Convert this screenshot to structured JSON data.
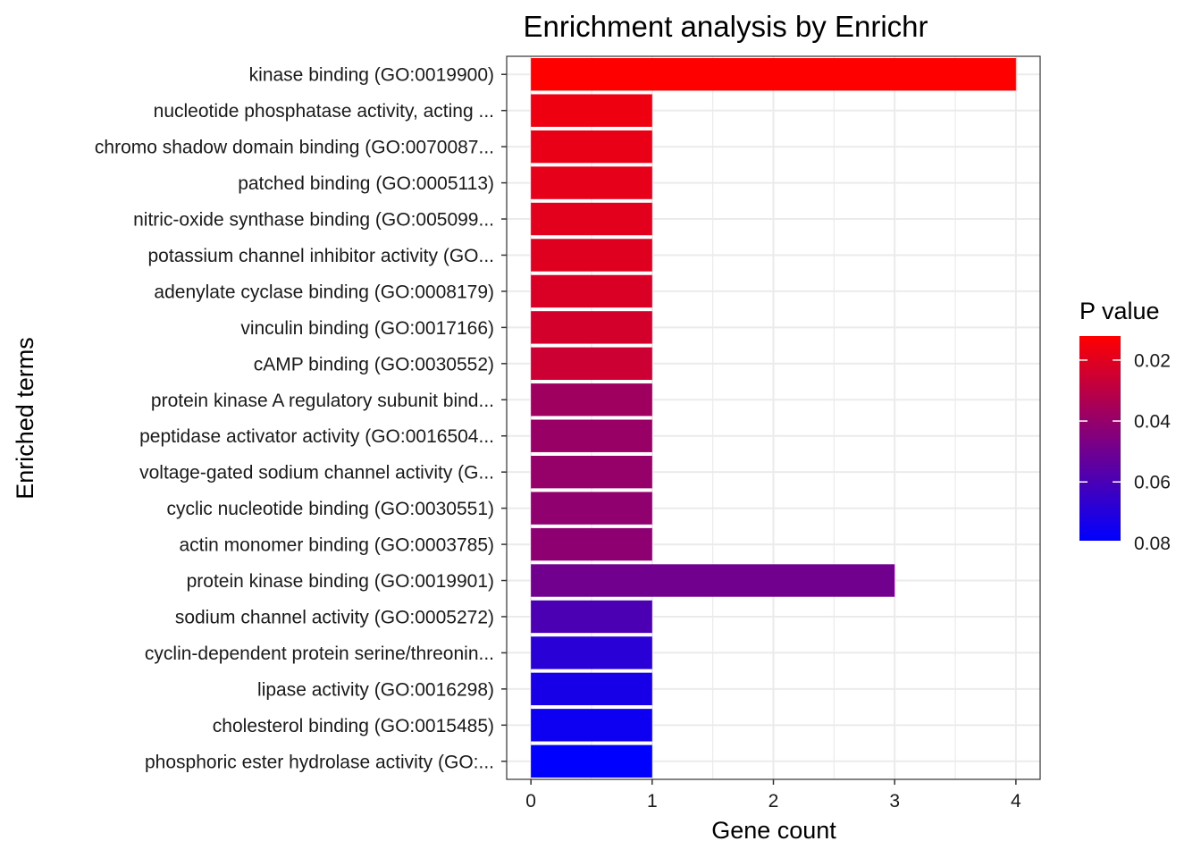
{
  "chart_data": {
    "type": "bar",
    "orientation": "horizontal",
    "title": "Enrichment analysis by Enrichr",
    "xlabel": "Gene count",
    "ylabel": "Enriched terms",
    "xlim": [
      0,
      4
    ],
    "x_ticks": [
      "0",
      "1",
      "2",
      "3",
      "4"
    ],
    "grid": true,
    "categories": [
      "kinase binding (GO:0019900)",
      "nucleotide phosphatase activity, acting ...",
      "chromo shadow domain binding (GO:0070087...",
      "patched binding (GO:0005113)",
      "nitric-oxide synthase binding (GO:005099...",
      "potassium channel inhibitor activity (GO...",
      "adenylate cyclase binding (GO:0008179)",
      "vinculin binding (GO:0017166)",
      "cAMP binding (GO:0030552)",
      "protein kinase A regulatory subunit bind...",
      "peptidase activator activity (GO:0016504...",
      "voltage-gated sodium channel activity (G...",
      "cyclic nucleotide binding (GO:0030551)",
      "actin monomer binding (GO:0003785)",
      "protein kinase binding (GO:0019901)",
      "sodium channel activity (GO:0005272)",
      "cyclin-dependent protein serine/threonin...",
      "lipase activity (GO:0016298)",
      "cholesterol binding (GO:0015485)",
      "phosphoric ester hydrolase activity (GO:..."
    ],
    "values": [
      4,
      1,
      1,
      1,
      1,
      1,
      1,
      1,
      1,
      1,
      1,
      1,
      1,
      1,
      3,
      1,
      1,
      1,
      1,
      1
    ],
    "p_values": [
      0.0121,
      0.0165,
      0.0178,
      0.0186,
      0.0196,
      0.0206,
      0.0218,
      0.0238,
      0.0256,
      0.0375,
      0.0389,
      0.0399,
      0.0413,
      0.0418,
      0.0495,
      0.0593,
      0.0686,
      0.0732,
      0.0758,
      0.0793
    ],
    "legend": {
      "title": "P value",
      "position": "right",
      "ticks": [
        0.02,
        0.04,
        0.06,
        0.08
      ],
      "tick_labels": [
        "0.02",
        "0.04",
        "0.06",
        "0.08"
      ],
      "range": [
        0.0121,
        0.0793
      ],
      "low_color": "#ff0000",
      "high_color": "#0000ff"
    }
  }
}
